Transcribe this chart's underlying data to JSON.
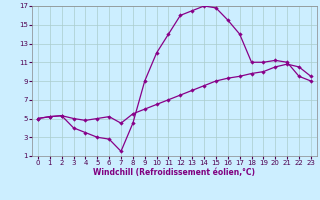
{
  "xlabel": "Windchill (Refroidissement éolien,°C)",
  "xlim": [
    -0.5,
    23.5
  ],
  "ylim": [
    1,
    17
  ],
  "xticks": [
    0,
    1,
    2,
    3,
    4,
    5,
    6,
    7,
    8,
    9,
    10,
    11,
    12,
    13,
    14,
    15,
    16,
    17,
    18,
    19,
    20,
    21,
    22,
    23
  ],
  "yticks": [
    1,
    3,
    5,
    7,
    9,
    11,
    13,
    15,
    17
  ],
  "background_color": "#cceeff",
  "grid_color": "#aacccc",
  "line_color": "#880088",
  "line1_x": [
    0,
    1,
    2,
    3,
    4,
    5,
    6,
    7,
    8,
    9,
    10,
    11,
    12,
    13,
    14,
    15,
    16,
    17,
    18,
    19,
    20,
    21,
    22,
    23
  ],
  "line1_y": [
    5.0,
    5.2,
    5.3,
    5.0,
    4.8,
    5.0,
    5.2,
    4.5,
    5.5,
    6.0,
    6.5,
    7.0,
    7.5,
    8.0,
    8.5,
    9.0,
    9.3,
    9.5,
    9.8,
    10.0,
    10.5,
    10.8,
    10.5,
    9.5
  ],
  "line2_x": [
    0,
    1,
    2,
    3,
    4,
    5,
    6,
    7,
    8,
    9,
    10,
    11,
    12,
    13,
    14,
    15,
    16,
    17,
    18,
    19,
    20,
    21,
    22,
    23
  ],
  "line2_y": [
    5.0,
    5.2,
    5.3,
    4.0,
    3.5,
    3.0,
    2.8,
    1.5,
    4.5,
    9.0,
    12.0,
    14.0,
    16.0,
    16.5,
    17.0,
    16.8,
    15.5,
    14.0,
    11.0,
    11.0,
    11.2,
    11.0,
    9.5,
    9.0
  ],
  "xlabel_color": "#800080",
  "xlabel_fontsize": 5.5,
  "tick_fontsize": 5,
  "tick_color": "#500050",
  "spine_color": "#888888",
  "marker": "D",
  "markersize": 2.2,
  "linewidth": 0.9
}
